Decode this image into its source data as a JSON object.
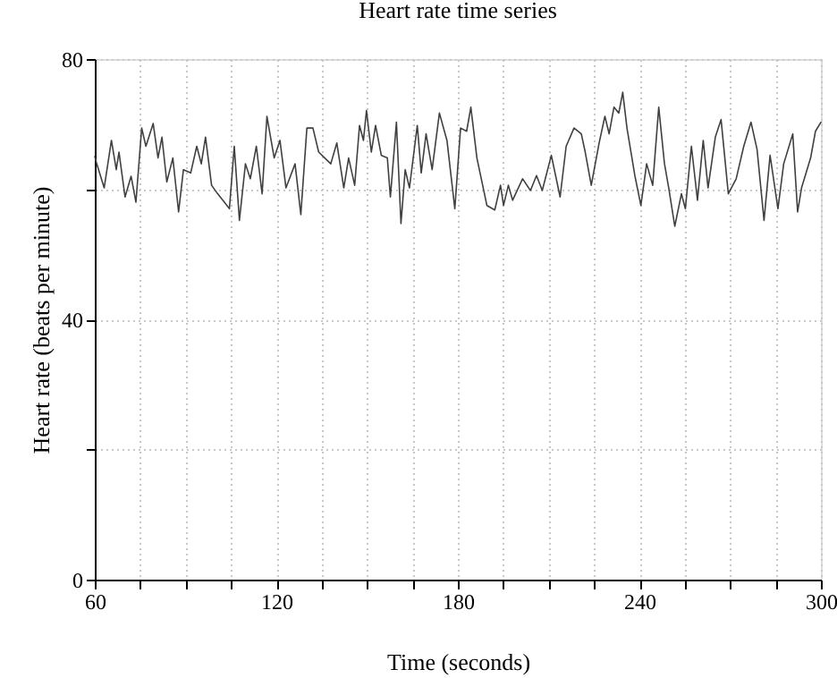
{
  "chart_data": {
    "type": "line",
    "title": "Heart rate time series",
    "xlabel": "Time (seconds)",
    "ylabel": "Heart rate (beats per minute)",
    "x": [
      60,
      60.6,
      63.1,
      65.5,
      67.1,
      68,
      70,
      72,
      73.6,
      75.5,
      76.9,
      79.3,
      80.9,
      82.2,
      83.8,
      85.8,
      87.7,
      89.3,
      91.7,
      93.7,
      95.2,
      96.6,
      98.6,
      100.6,
      104.5,
      106.1,
      107.8,
      109.8,
      111.4,
      113.4,
      115.3,
      116.9,
      119.3,
      121.2,
      123.2,
      126.2,
      128.1,
      130.1,
      132.1,
      134,
      136,
      138,
      140,
      142.3,
      143.9,
      145.9,
      147.5,
      148.8,
      149.8,
      151.4,
      152.8,
      154.7,
      156.7,
      157.7,
      159.7,
      161.2,
      162.6,
      164,
      166.6,
      167.9,
      169.5,
      171.5,
      173.9,
      176.4,
      179,
      180.9,
      182.9,
      184.3,
      186.3,
      189.6,
      192.2,
      194.1,
      195.1,
      196.7,
      198.1,
      201.4,
      204,
      206,
      207.9,
      210.9,
      213.8,
      215.8,
      218.4,
      220.8,
      222.1,
      224.1,
      226.7,
      228.6,
      230,
      231.6,
      233.2,
      234.5,
      235.9,
      238.5,
      240.5,
      242.4,
      244.4,
      246.4,
      248.3,
      249.7,
      251.7,
      253.9,
      255.2,
      257.2,
      259.2,
      261.1,
      262.7,
      265.1,
      267,
      269.4,
      272,
      274.5,
      276.9,
      278.9,
      281.2,
      283.2,
      285.8,
      287.7,
      290.7,
      292.3,
      293.6,
      296.6,
      298.2,
      300
    ],
    "series": [
      {
        "color": "#404040",
        "values": [
          65,
          64,
          60.2,
          67.5,
          63,
          65.7,
          58.8,
          62,
          58,
          69.4,
          66.6,
          70.1,
          64.8,
          68,
          61.1,
          64.8,
          56.5,
          63,
          62.5,
          66.6,
          63.9,
          68,
          60.6,
          59.3,
          57,
          66.6,
          55.2,
          63.9,
          61.6,
          66.6,
          59.3,
          71.2,
          64.8,
          67.5,
          60.2,
          63.9,
          56.1,
          69.4,
          69.4,
          65.7,
          64.8,
          63.9,
          67.1,
          60.2,
          64.8,
          60.6,
          69.8,
          67.5,
          72.1,
          65.7,
          69.8,
          65.2,
          64.8,
          58.8,
          70.3,
          54.7,
          63,
          60.2,
          69.8,
          62.5,
          68.5,
          63,
          71.7,
          67.5,
          57,
          69.4,
          68.9,
          72.6,
          64.8,
          57.5,
          56.8,
          60.6,
          57.5,
          60.6,
          58.3,
          61.6,
          59.8,
          62.1,
          59.8,
          65.2,
          58.8,
          66.6,
          69.4,
          68.5,
          65.7,
          60.6,
          67.1,
          71.2,
          68.5,
          72.6,
          71.7,
          74.9,
          69.4,
          62.1,
          57.5,
          63.9,
          60.6,
          72.6,
          63.9,
          60.2,
          54.3,
          59.3,
          57,
          66.6,
          58.3,
          67.5,
          60.2,
          68,
          70.7,
          59.3,
          61.6,
          66.6,
          70.3,
          66.1,
          55.2,
          65.2,
          57,
          63.9,
          68.5,
          56.5,
          60.2,
          64.8,
          68.9,
          70.3
        ]
      }
    ],
    "xlim": [
      60,
      300
    ],
    "xticks": [
      60,
      {
        "value": 75,
        "label": null
      },
      {
        "value": 90,
        "label": null
      },
      {
        "value": 105,
        "label": null
      },
      120,
      {
        "value": 135,
        "label": null
      },
      {
        "value": 150,
        "label": null
      },
      {
        "value": 165,
        "label": null
      },
      180,
      {
        "value": 195,
        "label": null
      },
      {
        "value": 210,
        "label": null
      },
      {
        "value": 225,
        "label": null
      },
      240,
      {
        "value": 255,
        "label": null
      },
      {
        "value": 270,
        "label": null
      },
      {
        "value": 285,
        "label": null
      },
      300
    ],
    "ylim": [
      0,
      80
    ],
    "yticks": [
      0,
      {
        "value": 20,
        "label": null
      },
      40,
      {
        "value": 60,
        "label": null
      },
      80
    ],
    "grid": true,
    "marker": "none",
    "line_style": "solid"
  }
}
